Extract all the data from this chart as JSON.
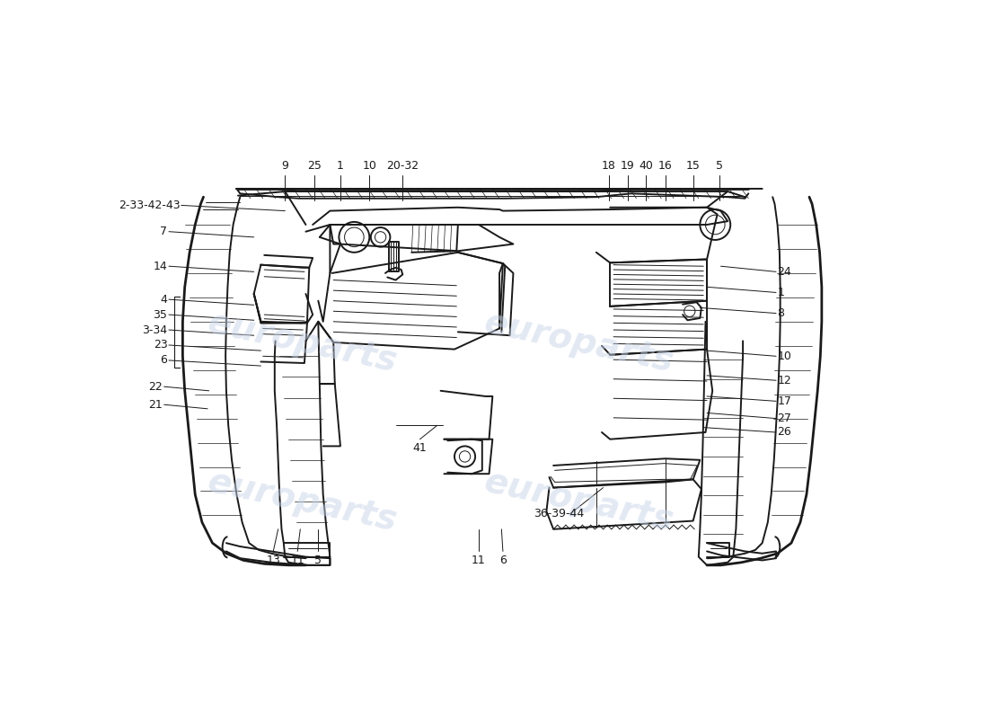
{
  "background_color": "#ffffff",
  "line_color": "#1a1a1a",
  "lw_main": 1.4,
  "lw_thin": 0.7,
  "lw_thick": 2.0,
  "fs_label": 9,
  "fs_small": 8,
  "watermark_color": "#c8d4e8",
  "watermark_alpha": 0.5,
  "fig_width": 11.0,
  "fig_height": 8.0,
  "dpi": 100,
  "labels_top": [
    [
      "9",
      230,
      128
    ],
    [
      "25",
      272,
      128
    ],
    [
      "1",
      310,
      128
    ],
    [
      "10",
      352,
      128
    ],
    [
      "20-32",
      400,
      128
    ]
  ],
  "labels_top_right": [
    [
      "18",
      698,
      128
    ],
    [
      "19",
      725,
      128
    ],
    [
      "40",
      752,
      128
    ],
    [
      "16",
      780,
      128
    ],
    [
      "15",
      820,
      128
    ],
    [
      "5",
      858,
      128
    ]
  ],
  "labels_left": [
    [
      "2-33-42-43",
      80,
      172,
      230,
      180
    ],
    [
      "7",
      62,
      210,
      185,
      218
    ],
    [
      "14",
      62,
      260,
      185,
      268
    ],
    [
      "4",
      62,
      308,
      185,
      316
    ],
    [
      "35",
      62,
      330,
      185,
      338
    ],
    [
      "3-34",
      62,
      352,
      185,
      360
    ],
    [
      "23",
      62,
      374,
      195,
      382
    ],
    [
      "6",
      62,
      396,
      195,
      404
    ],
    [
      "22",
      55,
      434,
      120,
      440
    ],
    [
      "21",
      55,
      460,
      118,
      466
    ]
  ],
  "labels_right": [
    [
      "24",
      940,
      268,
      860,
      260
    ],
    [
      "1",
      940,
      298,
      840,
      290
    ],
    [
      "8",
      940,
      328,
      830,
      320
    ],
    [
      "10",
      940,
      390,
      840,
      382
    ],
    [
      "12",
      940,
      425,
      840,
      418
    ],
    [
      "17",
      940,
      455,
      840,
      448
    ],
    [
      "27",
      940,
      480,
      840,
      472
    ],
    [
      "26",
      940,
      500,
      835,
      493
    ]
  ],
  "labels_bottom": [
    [
      "13",
      213,
      672,
      220,
      640
    ],
    [
      "11",
      248,
      672,
      252,
      640
    ],
    [
      "5",
      278,
      672,
      278,
      640
    ],
    [
      "41",
      425,
      510,
      450,
      490
    ],
    [
      "11",
      510,
      672,
      510,
      640
    ],
    [
      "6",
      545,
      672,
      543,
      640
    ]
  ],
  "label_36": [
    590,
    618,
    690,
    580
  ]
}
